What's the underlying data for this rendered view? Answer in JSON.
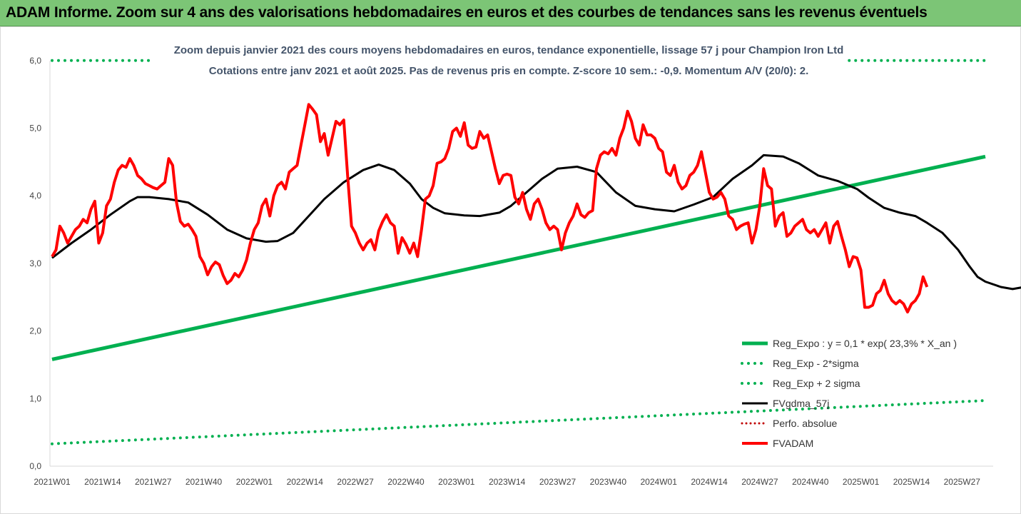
{
  "header": {
    "title": "ADAM Informe. Zoom sur 4 ans des valorisations hebdomadaires en euros et des courbes de tendances sans les revenus éventuels"
  },
  "chart_data": {
    "type": "line",
    "title": "Zoom depuis janvier 2021 des cours moyens hebdomadaires en euros, tendance exponentielle, lissage 57 j pour Champion Iron Ltd",
    "subtitle": "Cotations entre janv 2021 et août 2025. Pas de revenus pris en compte. Z-score 10 sem.: -0,9. Momentum A/V (20/0): 2.",
    "ylim": [
      0,
      6
    ],
    "yticks": [
      "0,0",
      "1,0",
      "2,0",
      "3,0",
      "4,0",
      "5,0",
      "6,0"
    ],
    "xticks": [
      "2021W01",
      "2021W14",
      "2021W27",
      "2021W40",
      "2022W01",
      "2022W14",
      "2022W27",
      "2022W40",
      "2023W01",
      "2023W14",
      "2023W27",
      "2023W40",
      "2024W01",
      "2024W14",
      "2024W27",
      "2024W40",
      "2025W01",
      "2025W14",
      "2025W27"
    ],
    "legend_position": "right",
    "grid": false,
    "colors": {
      "green": "#00b050",
      "black": "#000000",
      "red": "#ff0000",
      "red_dotted": "#c00000"
    },
    "series": [
      {
        "name": "Reg_Expo : y = 0,1 * exp( 23,3% *  X_an )",
        "style": "solid-green",
        "points": [
          [
            0,
            1.58
          ],
          [
            240,
            4.58
          ]
        ]
      },
      {
        "name": "Reg_Exp - 2*sigma",
        "style": "dotted-green",
        "points": [
          [
            0,
            0.33
          ],
          [
            240,
            0.97
          ]
        ]
      },
      {
        "name": "Reg_Exp + 2 sigma",
        "style": "dotted-green",
        "points": [
          [
            0,
            6.0
          ],
          [
            240,
            6.0
          ]
        ]
      },
      {
        "name": "FVgdma_57j",
        "style": "solid-black",
        "points": [
          [
            0,
            3.08
          ],
          [
            5,
            3.3
          ],
          [
            10,
            3.5
          ],
          [
            15,
            3.72
          ],
          [
            20,
            3.92
          ],
          [
            22,
            3.98
          ],
          [
            25,
            3.98
          ],
          [
            30,
            3.95
          ],
          [
            35,
            3.9
          ],
          [
            40,
            3.72
          ],
          [
            45,
            3.5
          ],
          [
            50,
            3.37
          ],
          [
            55,
            3.32
          ],
          [
            58,
            3.33
          ],
          [
            62,
            3.45
          ],
          [
            66,
            3.7
          ],
          [
            70,
            3.95
          ],
          [
            75,
            4.2
          ],
          [
            80,
            4.38
          ],
          [
            84,
            4.46
          ],
          [
            88,
            4.38
          ],
          [
            92,
            4.18
          ],
          [
            95,
            3.95
          ],
          [
            98,
            3.82
          ],
          [
            101,
            3.74
          ],
          [
            106,
            3.71
          ],
          [
            110,
            3.7
          ],
          [
            115,
            3.75
          ],
          [
            118,
            3.85
          ],
          [
            122,
            4.05
          ],
          [
            126,
            4.25
          ],
          [
            130,
            4.4
          ],
          [
            135,
            4.43
          ],
          [
            140,
            4.35
          ],
          [
            145,
            4.05
          ],
          [
            150,
            3.85
          ],
          [
            155,
            3.8
          ],
          [
            160,
            3.77
          ],
          [
            165,
            3.87
          ],
          [
            170,
            3.98
          ],
          [
            175,
            4.25
          ],
          [
            180,
            4.45
          ],
          [
            183,
            4.6
          ],
          [
            188,
            4.58
          ],
          [
            192,
            4.48
          ],
          [
            197,
            4.3
          ],
          [
            202,
            4.22
          ],
          [
            207,
            4.1
          ],
          [
            210,
            3.97
          ],
          [
            214,
            3.82
          ],
          [
            218,
            3.75
          ],
          [
            222,
            3.7
          ],
          [
            225,
            3.6
          ],
          [
            229,
            3.45
          ],
          [
            233,
            3.2
          ],
          [
            236,
            2.95
          ],
          [
            238,
            2.8
          ],
          [
            240,
            2.73
          ],
          [
            244,
            2.65
          ],
          [
            247,
            2.62
          ],
          [
            250,
            2.65
          ]
        ]
      },
      {
        "name": "Perfo. absolue",
        "style": "dotted-red",
        "points": []
      },
      {
        "name": "FVADAM",
        "style": "solid-red",
        "points": [
          [
            0,
            3.1
          ],
          [
            1,
            3.2
          ],
          [
            2,
            3.55
          ],
          [
            3,
            3.45
          ],
          [
            4,
            3.3
          ],
          [
            5,
            3.4
          ],
          [
            6,
            3.5
          ],
          [
            7,
            3.55
          ],
          [
            8,
            3.65
          ],
          [
            9,
            3.6
          ],
          [
            10,
            3.8
          ],
          [
            11,
            3.92
          ],
          [
            12,
            3.3
          ],
          [
            13,
            3.45
          ],
          [
            14,
            3.85
          ],
          [
            15,
            3.95
          ],
          [
            16,
            4.2
          ],
          [
            17,
            4.38
          ],
          [
            18,
            4.45
          ],
          [
            19,
            4.42
          ],
          [
            20,
            4.55
          ],
          [
            21,
            4.45
          ],
          [
            22,
            4.3
          ],
          [
            23,
            4.25
          ],
          [
            24,
            4.18
          ],
          [
            25,
            4.15
          ],
          [
            26,
            4.12
          ],
          [
            27,
            4.1
          ],
          [
            28,
            4.15
          ],
          [
            29,
            4.2
          ],
          [
            30,
            4.55
          ],
          [
            31,
            4.45
          ],
          [
            32,
            3.9
          ],
          [
            33,
            3.62
          ],
          [
            34,
            3.55
          ],
          [
            35,
            3.58
          ],
          [
            36,
            3.5
          ],
          [
            37,
            3.4
          ],
          [
            38,
            3.1
          ],
          [
            39,
            3.0
          ],
          [
            40,
            2.83
          ],
          [
            41,
            2.95
          ],
          [
            42,
            3.02
          ],
          [
            43,
            2.98
          ],
          [
            44,
            2.82
          ],
          [
            45,
            2.7
          ],
          [
            46,
            2.75
          ],
          [
            47,
            2.85
          ],
          [
            48,
            2.8
          ],
          [
            49,
            2.9
          ],
          [
            50,
            3.05
          ],
          [
            51,
            3.3
          ],
          [
            52,
            3.5
          ],
          [
            53,
            3.6
          ],
          [
            54,
            3.85
          ],
          [
            55,
            3.95
          ],
          [
            56,
            3.7
          ],
          [
            57,
            4.0
          ],
          [
            58,
            4.15
          ],
          [
            59,
            4.2
          ],
          [
            60,
            4.1
          ],
          [
            61,
            4.35
          ],
          [
            62,
            4.4
          ],
          [
            63,
            4.45
          ],
          [
            64,
            4.75
          ],
          [
            65,
            5.05
          ],
          [
            66,
            5.35
          ],
          [
            67,
            5.28
          ],
          [
            68,
            5.2
          ],
          [
            69,
            4.8
          ],
          [
            70,
            4.92
          ],
          [
            71,
            4.6
          ],
          [
            72,
            4.85
          ],
          [
            73,
            5.1
          ],
          [
            74,
            5.05
          ],
          [
            75,
            5.12
          ],
          [
            76,
            4.3
          ],
          [
            77,
            3.55
          ],
          [
            78,
            3.45
          ],
          [
            79,
            3.3
          ],
          [
            80,
            3.2
          ],
          [
            81,
            3.3
          ],
          [
            82,
            3.35
          ],
          [
            83,
            3.2
          ],
          [
            84,
            3.48
          ],
          [
            85,
            3.62
          ],
          [
            86,
            3.72
          ],
          [
            87,
            3.6
          ],
          [
            88,
            3.55
          ],
          [
            89,
            3.15
          ],
          [
            90,
            3.38
          ],
          [
            91,
            3.28
          ],
          [
            92,
            3.15
          ],
          [
            93,
            3.3
          ],
          [
            94,
            3.1
          ],
          [
            95,
            3.5
          ],
          [
            96,
            3.95
          ],
          [
            97,
            4.0
          ],
          [
            98,
            4.15
          ],
          [
            99,
            4.48
          ],
          [
            100,
            4.5
          ],
          [
            101,
            4.55
          ],
          [
            102,
            4.7
          ],
          [
            103,
            4.95
          ],
          [
            104,
            5.0
          ],
          [
            105,
            4.88
          ],
          [
            106,
            5.08
          ],
          [
            107,
            4.75
          ],
          [
            108,
            4.7
          ],
          [
            109,
            4.72
          ],
          [
            110,
            4.95
          ],
          [
            111,
            4.85
          ],
          [
            112,
            4.9
          ],
          [
            113,
            4.65
          ],
          [
            114,
            4.4
          ],
          [
            115,
            4.18
          ],
          [
            116,
            4.3
          ],
          [
            117,
            4.32
          ],
          [
            118,
            4.3
          ],
          [
            119,
            3.98
          ],
          [
            120,
            3.88
          ],
          [
            121,
            4.05
          ],
          [
            122,
            3.8
          ],
          [
            123,
            3.65
          ],
          [
            124,
            3.88
          ],
          [
            125,
            3.95
          ],
          [
            126,
            3.8
          ],
          [
            127,
            3.6
          ],
          [
            128,
            3.5
          ],
          [
            129,
            3.55
          ],
          [
            130,
            3.5
          ],
          [
            131,
            3.2
          ],
          [
            132,
            3.45
          ],
          [
            133,
            3.6
          ],
          [
            134,
            3.7
          ],
          [
            135,
            3.88
          ],
          [
            136,
            3.72
          ],
          [
            137,
            3.68
          ],
          [
            138,
            3.75
          ],
          [
            139,
            3.78
          ],
          [
            140,
            4.4
          ],
          [
            141,
            4.6
          ],
          [
            142,
            4.65
          ],
          [
            143,
            4.62
          ],
          [
            144,
            4.7
          ],
          [
            145,
            4.6
          ],
          [
            146,
            4.85
          ],
          [
            147,
            5.0
          ],
          [
            148,
            5.25
          ],
          [
            149,
            5.1
          ],
          [
            150,
            4.85
          ],
          [
            151,
            4.75
          ],
          [
            152,
            5.05
          ],
          [
            153,
            4.9
          ],
          [
            154,
            4.9
          ],
          [
            155,
            4.85
          ],
          [
            156,
            4.7
          ],
          [
            157,
            4.65
          ],
          [
            158,
            4.35
          ],
          [
            159,
            4.3
          ],
          [
            160,
            4.45
          ],
          [
            161,
            4.2
          ],
          [
            162,
            4.1
          ],
          [
            163,
            4.15
          ],
          [
            164,
            4.3
          ],
          [
            165,
            4.35
          ],
          [
            166,
            4.45
          ],
          [
            167,
            4.65
          ],
          [
            168,
            4.35
          ],
          [
            169,
            4.05
          ],
          [
            170,
            3.95
          ],
          [
            171,
            3.98
          ],
          [
            172,
            4.05
          ],
          [
            173,
            3.95
          ],
          [
            174,
            3.7
          ],
          [
            175,
            3.65
          ],
          [
            176,
            3.5
          ],
          [
            177,
            3.55
          ],
          [
            178,
            3.58
          ],
          [
            179,
            3.6
          ],
          [
            180,
            3.3
          ],
          [
            181,
            3.5
          ],
          [
            182,
            3.85
          ],
          [
            183,
            4.4
          ],
          [
            184,
            4.15
          ],
          [
            185,
            4.1
          ],
          [
            186,
            3.55
          ],
          [
            187,
            3.7
          ],
          [
            188,
            3.75
          ],
          [
            189,
            3.4
          ],
          [
            190,
            3.45
          ],
          [
            191,
            3.55
          ],
          [
            192,
            3.6
          ],
          [
            193,
            3.65
          ],
          [
            194,
            3.5
          ],
          [
            195,
            3.45
          ],
          [
            196,
            3.5
          ],
          [
            197,
            3.4
          ],
          [
            198,
            3.5
          ],
          [
            199,
            3.6
          ],
          [
            200,
            3.3
          ],
          [
            201,
            3.55
          ],
          [
            202,
            3.62
          ],
          [
            203,
            3.4
          ],
          [
            204,
            3.2
          ],
          [
            205,
            2.95
          ],
          [
            206,
            3.1
          ],
          [
            207,
            3.08
          ],
          [
            208,
            2.9
          ],
          [
            209,
            2.35
          ],
          [
            210,
            2.35
          ],
          [
            211,
            2.38
          ],
          [
            212,
            2.55
          ],
          [
            213,
            2.6
          ],
          [
            214,
            2.75
          ],
          [
            215,
            2.55
          ],
          [
            216,
            2.45
          ],
          [
            217,
            2.4
          ],
          [
            218,
            2.45
          ],
          [
            219,
            2.4
          ],
          [
            220,
            2.28
          ],
          [
            221,
            2.4
          ],
          [
            222,
            2.45
          ],
          [
            223,
            2.55
          ],
          [
            224,
            2.8
          ],
          [
            225,
            2.65
          ]
        ]
      }
    ]
  }
}
